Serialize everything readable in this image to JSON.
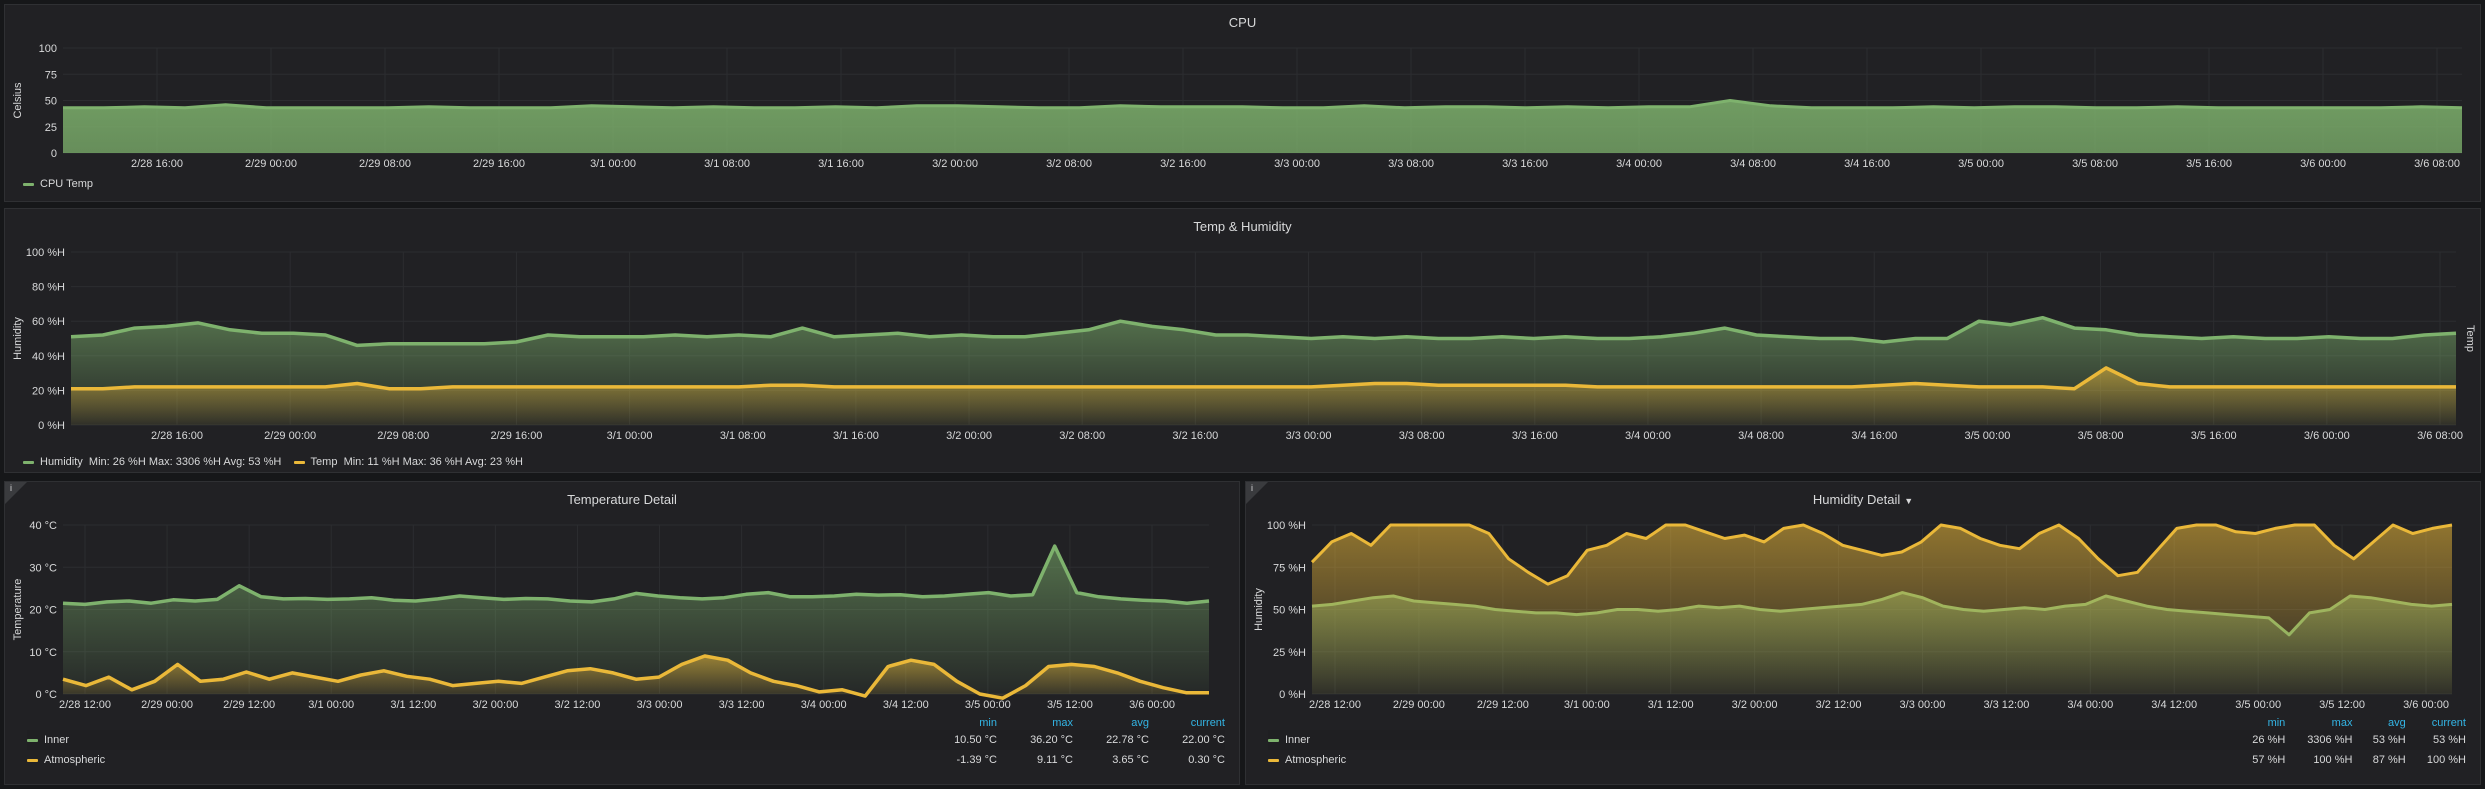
{
  "colors": {
    "green": "#7eb26d",
    "yellow": "#eab839",
    "grid": "#2c2d30",
    "bg": "#212124"
  },
  "panels": {
    "cpu": {
      "title": "CPU",
      "y_axis_label": "Celsius",
      "legend": [
        {
          "name": "CPU Temp",
          "color": "#7eb26d"
        }
      ],
      "chart_data": {
        "type": "line",
        "y_ticks": [
          "100",
          "75",
          "50",
          "25",
          "0"
        ],
        "ylim": [
          0,
          100
        ],
        "x_ticks": [
          "2/28 16:00",
          "2/29 00:00",
          "2/29 08:00",
          "2/29 16:00",
          "3/1 00:00",
          "3/1 08:00",
          "3/1 16:00",
          "3/2 00:00",
          "3/2 08:00",
          "3/2 16:00",
          "3/3 00:00",
          "3/3 08:00",
          "3/3 16:00",
          "3/4 00:00",
          "3/4 08:00",
          "3/4 16:00",
          "3/5 00:00",
          "3/5 08:00",
          "3/5 16:00",
          "3/6 00:00",
          "3/6 08:00"
        ],
        "series": [
          {
            "name": "CPU Temp",
            "color": "#7eb26d",
            "values": [
              43,
              43,
              44,
              43,
              46,
              43,
              43,
              43,
              43,
              44,
              43,
              43,
              43,
              45,
              44,
              43,
              44,
              43,
              43,
              44,
              43,
              45,
              45,
              44,
              43,
              43,
              45,
              44,
              44,
              44,
              43,
              43,
              45,
              43,
              44,
              44,
              43,
              44,
              43,
              44,
              44,
              50,
              45,
              43,
              43,
              43,
              44,
              43,
              44,
              44,
              43,
              43,
              44,
              43,
              43,
              43,
              43,
              43,
              44,
              43
            ]
          }
        ]
      }
    },
    "temphum": {
      "title": "Temp & Humidity",
      "y_axis_label_left": "Humidity",
      "y_axis_label_right": "Temp",
      "legend": [
        {
          "name": "Humidity",
          "color": "#7eb26d",
          "stats": "Min: 26 %H   Max: 3306 %H   Avg: 53 %H"
        },
        {
          "name": "Temp",
          "color": "#eab839",
          "stats": "Min: 11 %H   Max: 36 %H   Avg: 23 %H"
        }
      ],
      "chart_data": {
        "type": "line",
        "y_ticks": [
          "100 %H",
          "80 %H",
          "60 %H",
          "40 %H",
          "20 %H",
          "0 %H"
        ],
        "ylim": [
          0,
          100
        ],
        "x_ticks": [
          "2/28 16:00",
          "2/29 00:00",
          "2/29 08:00",
          "2/29 16:00",
          "3/1 00:00",
          "3/1 08:00",
          "3/1 16:00",
          "3/2 00:00",
          "3/2 08:00",
          "3/2 16:00",
          "3/3 00:00",
          "3/3 08:00",
          "3/3 16:00",
          "3/4 00:00",
          "3/4 08:00",
          "3/4 16:00",
          "3/5 00:00",
          "3/5 08:00",
          "3/5 16:00",
          "3/6 00:00",
          "3/6 08:00"
        ],
        "series": [
          {
            "name": "Humidity",
            "color": "#7eb26d",
            "values": [
              51,
              52,
              56,
              57,
              59,
              55,
              53,
              53,
              52,
              46,
              47,
              47,
              47,
              47,
              48,
              52,
              51,
              51,
              51,
              52,
              51,
              52,
              51,
              56,
              51,
              52,
              53,
              51,
              52,
              51,
              51,
              53,
              55,
              60,
              57,
              55,
              52,
              52,
              51,
              50,
              51,
              50,
              51,
              50,
              50,
              51,
              50,
              51,
              50,
              50,
              51,
              53,
              56,
              52,
              51,
              50,
              50,
              48,
              50,
              50,
              60,
              58,
              62,
              56,
              55,
              52,
              51,
              50,
              51,
              50,
              50,
              51,
              50,
              50,
              52,
              53
            ]
          },
          {
            "name": "Temp",
            "color": "#eab839",
            "values": [
              21,
              21,
              22,
              22,
              22,
              22,
              22,
              22,
              22,
              24,
              21,
              21,
              22,
              22,
              22,
              22,
              22,
              22,
              22,
              22,
              22,
              22,
              23,
              23,
              22,
              22,
              22,
              22,
              22,
              22,
              22,
              22,
              22,
              22,
              22,
              22,
              22,
              22,
              22,
              22,
              23,
              24,
              24,
              23,
              23,
              23,
              23,
              23,
              22,
              22,
              22,
              22,
              22,
              22,
              22,
              22,
              22,
              23,
              24,
              23,
              22,
              22,
              22,
              21,
              33,
              24,
              22,
              22,
              22,
              22,
              22,
              22,
              22,
              22,
              22,
              22
            ]
          }
        ]
      }
    },
    "tempdetail": {
      "title": "Temperature Detail",
      "info_icon": "i",
      "y_axis_label": "Temperature",
      "legend_headers": [
        "min",
        "max",
        "avg",
        "current"
      ],
      "legend_rows": [
        {
          "name": "Inner",
          "color": "#7eb26d",
          "min": "10.50 °C",
          "max": "36.20 °C",
          "avg": "22.78 °C",
          "current": "22.00 °C"
        },
        {
          "name": "Atmospheric",
          "color": "#eab839",
          "min": "-1.39 °C",
          "max": "9.11 °C",
          "avg": "3.65 °C",
          "current": "0.30 °C"
        }
      ],
      "chart_data": {
        "type": "line",
        "y_ticks": [
          "40 °C",
          "30 °C",
          "20 °C",
          "10 °C",
          "0 °C"
        ],
        "ylim": [
          0,
          40
        ],
        "x_ticks": [
          "2/28 12:00",
          "2/29 00:00",
          "2/29 12:00",
          "3/1 00:00",
          "3/1 12:00",
          "3/2 00:00",
          "3/2 12:00",
          "3/3 00:00",
          "3/3 12:00",
          "3/4 00:00",
          "3/4 12:00",
          "3/5 00:00",
          "3/5 12:00",
          "3/6 00:00"
        ],
        "series": [
          {
            "name": "Inner",
            "color": "#7eb26d",
            "values": [
              21.5,
              21.2,
              21.8,
              22,
              21.5,
              22.3,
              22,
              22.4,
              25.6,
              23,
              22.5,
              22.6,
              22.4,
              22.5,
              22.8,
              22.2,
              22,
              22.5,
              23.2,
              22.8,
              22.4,
              22.6,
              22.5,
              22,
              21.8,
              22.5,
              23.8,
              23.2,
              22.8,
              22.5,
              22.8,
              23.6,
              24,
              23,
              23,
              23.2,
              23.6,
              23.4,
              23.5,
              23,
              23.2,
              23.6,
              24,
              23.2,
              23.5,
              35,
              24,
              23,
              22.5,
              22.2,
              22,
              21.5,
              22
            ]
          },
          {
            "name": "Atmospheric",
            "color": "#eab839",
            "values": [
              3.5,
              2,
              4,
              1,
              3,
              7,
              3,
              3.5,
              5.2,
              3.5,
              5,
              4,
              3,
              4.5,
              5.5,
              4.2,
              3.5,
              2,
              2.5,
              3,
              2.5,
              4,
              5.5,
              6,
              5,
              3.5,
              4,
              7,
              9,
              8,
              5,
              3,
              2,
              0.5,
              1,
              -0.5,
              6.5,
              8,
              7,
              3,
              0,
              -1,
              2,
              6.5,
              7,
              6.5,
              5,
              3,
              1.5,
              0.3,
              0.3
            ]
          }
        ]
      }
    },
    "humdetail": {
      "title": "Humidity Detail",
      "info_icon": "i",
      "y_axis_label": "Humidity",
      "legend_headers": [
        "min",
        "max",
        "avg",
        "current"
      ],
      "legend_rows": [
        {
          "name": "Inner",
          "color": "#7eb26d",
          "min": "26 %H",
          "max": "3306 %H",
          "avg": "53 %H",
          "current": "53 %H"
        },
        {
          "name": "Atmospheric",
          "color": "#eab839",
          "min": "57 %H",
          "max": "100 %H",
          "avg": "87 %H",
          "current": "100 %H"
        }
      ],
      "chart_data": {
        "type": "line",
        "y_ticks": [
          "100 %H",
          "75 %H",
          "50 %H",
          "25 %H",
          "0 %H"
        ],
        "ylim": [
          0,
          100
        ],
        "x_ticks": [
          "2/28 12:00",
          "2/29 00:00",
          "2/29 12:00",
          "3/1 00:00",
          "3/1 12:00",
          "3/2 00:00",
          "3/2 12:00",
          "3/3 00:00",
          "3/3 12:00",
          "3/4 00:00",
          "3/4 12:00",
          "3/5 00:00",
          "3/5 12:00",
          "3/6 00:00"
        ],
        "series": [
          {
            "name": "Inner",
            "color": "#7eb26d",
            "values": [
              52,
              53,
              55,
              57,
              58,
              55,
              54,
              53,
              52,
              50,
              49,
              48,
              48,
              47,
              48,
              50,
              50,
              49,
              50,
              52,
              51,
              52,
              50,
              49,
              50,
              51,
              52,
              53,
              56,
              60,
              57,
              52,
              50,
              49,
              50,
              51,
              50,
              52,
              53,
              58,
              55,
              52,
              50,
              49,
              48,
              47,
              46,
              45,
              35,
              48,
              50,
              58,
              57,
              55,
              53,
              52,
              53
            ]
          },
          {
            "name": "Atmospheric",
            "color": "#eab839",
            "values": [
              78,
              90,
              95,
              88,
              100,
              100,
              100,
              100,
              100,
              95,
              80,
              72,
              65,
              70,
              85,
              88,
              95,
              92,
              100,
              100,
              96,
              92,
              94,
              90,
              98,
              100,
              95,
              88,
              85,
              82,
              84,
              90,
              100,
              98,
              92,
              88,
              86,
              95,
              100,
              92,
              80,
              70,
              72,
              85,
              98,
              100,
              100,
              96,
              95,
              98,
              100,
              100,
              88,
              80,
              90,
              100,
              95,
              98,
              100
            ]
          }
        ]
      }
    }
  }
}
